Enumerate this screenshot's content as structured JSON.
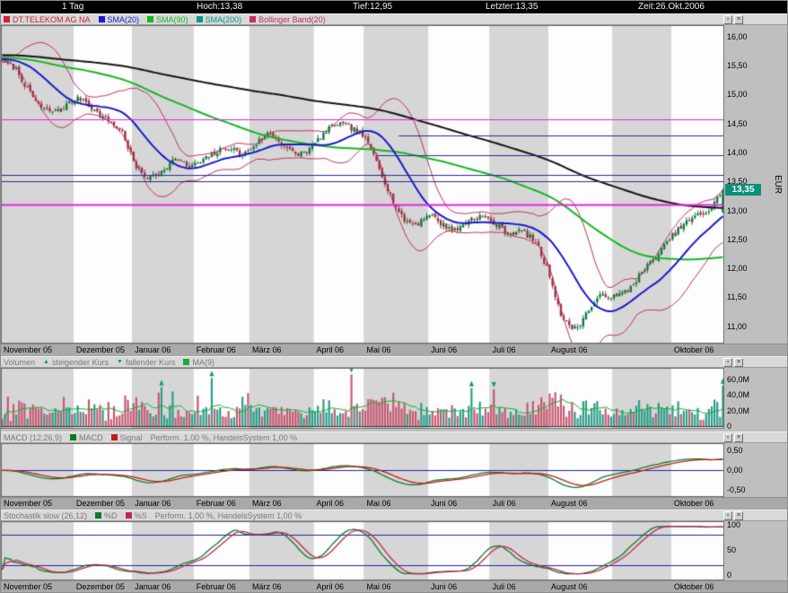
{
  "topbar": {
    "interval": "1 Tag",
    "hoch": "Hoch:13,38",
    "tief": "Tief:12,95",
    "letzter": "Letzter:13,35",
    "zeit": "Zeit:26.Okt.2006"
  },
  "icons": {
    "minimize": "▫",
    "close": "×"
  },
  "months": [
    {
      "label": "November 05",
      "days": 26
    },
    {
      "label": "Dezember 05",
      "days": 21
    },
    {
      "label": "Januar 06",
      "days": 22
    },
    {
      "label": "Februar 06",
      "days": 20
    },
    {
      "label": "März 06",
      "days": 23
    },
    {
      "label": "April 06",
      "days": 18
    },
    {
      "label": "Mai 06",
      "days": 23
    },
    {
      "label": "Juni 06",
      "days": 22
    },
    {
      "label": "Juli 06",
      "days": 21
    },
    {
      "label": "August 06",
      "days": 23
    },
    {
      "label": "",
      "days": 21
    },
    {
      "label": "Oktober 06",
      "days": 19
    }
  ],
  "panels": {
    "price": {
      "legend": [
        {
          "label": "DT.TELEKOM AG NA",
          "color": "#cc2233",
          "marker": "box"
        },
        {
          "label": "SMA(20)",
          "color": "#1a1acc",
          "marker": "box"
        },
        {
          "label": "SMA(90)",
          "color": "#12b81f",
          "marker": "box"
        },
        {
          "label": "SMA(200)",
          "color": "#009988",
          "marker": "box"
        },
        {
          "label": "Bollinger Band(20)",
          "color": "#c2305c",
          "marker": "box"
        }
      ],
      "y_ticks": [
        "16,00",
        "15,50",
        "15,00",
        "14,50",
        "14,00",
        "13,50",
        "13,00",
        "12,50",
        "12,00",
        "11,50",
        "11,00"
      ],
      "unit": "EUR",
      "badge": "13,35"
    },
    "volume": {
      "title": "Volumen",
      "legend": [
        {
          "label": "steigender Kurs",
          "color": "#00a050",
          "marker": "up-arrow"
        },
        {
          "label": "fallender Kurs",
          "color": "#1f8f8f",
          "marker": "down-arrow"
        },
        {
          "label": "MA(9)",
          "color": "#0faf3a",
          "marker": "box"
        }
      ],
      "y_ticks": [
        {
          "label": "60,0M",
          "value": 60
        },
        {
          "label": "40,0M",
          "value": 40
        },
        {
          "label": "20,0M",
          "value": 20
        },
        {
          "label": "0",
          "value": 0
        }
      ]
    },
    "macd": {
      "title": "MACD (12,26,9)",
      "legend": [
        {
          "label": "MACD",
          "color": "#0a7d22",
          "marker": "box"
        },
        {
          "label": "Signal",
          "color": "#c01d1d",
          "marker": "box"
        }
      ],
      "perform": "Perform. 1,00 %, HandelsSystem 1,00 %",
      "y_ticks": [
        {
          "label": "0,50",
          "value": 0.5
        },
        {
          "label": "0,00",
          "value": 0
        },
        {
          "label": "-0,50",
          "value": -0.5
        }
      ]
    },
    "stoch": {
      "title": "Stochastik slow (26,12)",
      "legend": [
        {
          "label": "%D",
          "color": "#0a7d22",
          "marker": "box"
        },
        {
          "label": "%S",
          "color": "#c2255c",
          "marker": "box"
        }
      ],
      "perform": "Perform. 1,00 %, HandelsSystem 1,00 %",
      "y_ticks": [
        {
          "label": "100",
          "value": 100
        },
        {
          "label": "50",
          "value": 50
        },
        {
          "label": "0",
          "value": 0
        }
      ]
    }
  },
  "chart_data": [
    {
      "type": "candlestick",
      "title": "DT.TELEKOM AG NA",
      "interval": "1 Tag",
      "currency": "EUR",
      "date": "26.Okt.2006",
      "last": 13.35,
      "day_high": 13.38,
      "day_low": 12.95,
      "y_range": [
        10.7,
        16.2
      ],
      "seed": 7,
      "overlays": [
        "SMA(20)",
        "SMA(90)",
        "SMA(200)",
        "Bollinger Band(20)"
      ],
      "sma_windows": [
        20,
        90,
        200
      ],
      "bollinger_window": 20,
      "bollinger_sigma": 2,
      "weekly_close_anchors": [
        15.6,
        15.45,
        15.05,
        14.75,
        14.7,
        14.85,
        14.95,
        14.7,
        14.55,
        14.35,
        13.75,
        13.55,
        13.7,
        13.9,
        13.75,
        13.85,
        14.0,
        14.1,
        13.95,
        14.15,
        14.35,
        14.15,
        13.95,
        14.05,
        14.3,
        14.5,
        14.45,
        14.3,
        13.9,
        13.3,
        12.85,
        12.75,
        12.95,
        12.75,
        12.65,
        12.85,
        12.9,
        12.75,
        12.6,
        12.65,
        12.45,
        11.9,
        11.1,
        10.95,
        11.3,
        11.55,
        11.5,
        11.65,
        11.95,
        12.2,
        12.5,
        12.75,
        12.9,
        13.0,
        13.35
      ],
      "hlines": [
        {
          "value": 14.58,
          "color": "#e620e6",
          "from": 0,
          "to": 1,
          "width": 1
        },
        {
          "value": 13.1,
          "color": "#e620e6",
          "from": 0,
          "to": 1,
          "width": 2
        },
        {
          "value": 14.3,
          "color": "#2a2a9a",
          "from": 0.55,
          "to": 1,
          "width": 1
        },
        {
          "value": 13.95,
          "color": "#2a2a9a",
          "from": 0.52,
          "to": 1,
          "width": 1
        },
        {
          "value": 13.62,
          "color": "#2a2a9a",
          "from": 0,
          "to": 1,
          "width": 1
        },
        {
          "value": 13.5,
          "color": "#2a2a9a",
          "from": 0,
          "to": 1,
          "width": 1
        }
      ]
    },
    {
      "type": "bar",
      "title": "Volumen",
      "series": [
        "steigender Kurs",
        "fallender Kurs",
        "MA(9)"
      ],
      "y_max_millions": 70,
      "y_ticks": [
        60,
        40,
        20,
        0
      ],
      "unit": "M"
    },
    {
      "type": "line",
      "title": "MACD (12,26,9)",
      "series": [
        "MACD",
        "Signal"
      ],
      "ylim": [
        -0.6,
        0.6
      ],
      "y_ticks": [
        0.5,
        0,
        -0.5
      ],
      "zero_line": 0
    },
    {
      "type": "line",
      "title": "Stochastik slow (26,12)",
      "series": [
        "%D",
        "%S"
      ],
      "ylim": [
        0,
        100
      ],
      "y_ticks": [
        100,
        50,
        0
      ],
      "reference_lines": [
        80,
        20
      ]
    }
  ],
  "colors": {
    "stripe_dark": "#d6d6d6",
    "stripe_light": "#fdfdfd",
    "candle_up": "#0e7a3a",
    "candle_down": "#98343f",
    "sma20": "#1a1acc",
    "sma90": "#12b81f",
    "sma200": "#141414",
    "bollinger": "#c2305c",
    "badge": "#0a9178",
    "vol_up": "#2f9d8a",
    "vol_down": "#c65b72",
    "vol_ma": "#0faf3a",
    "arrow_up": "#00a050",
    "arrow_down": "#1f8f8f",
    "macd": "#0a7d22",
    "macd_signal": "#c01d1d",
    "stoch_d": "#0a7d22",
    "stoch_s": "#c2255c",
    "ref_navy": "#2222aa",
    "frame": "#6e6e6e"
  }
}
